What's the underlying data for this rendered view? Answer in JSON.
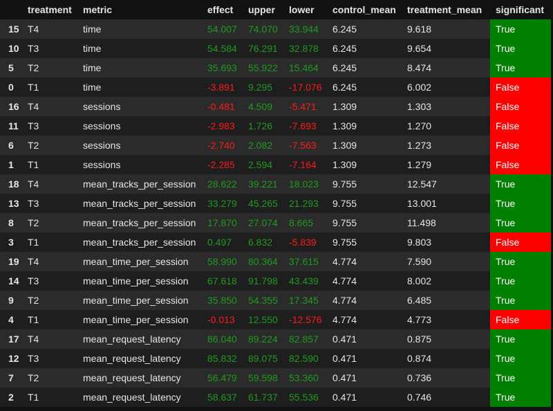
{
  "columns": [
    "",
    "treatment",
    "metric",
    "effect",
    "upper",
    "lower",
    "control_mean",
    "treatment_mean",
    "significant"
  ],
  "rows": [
    {
      "index": "15",
      "treatment": "T4",
      "metric": "time",
      "effect": "54.007",
      "upper": "74.070",
      "lower": "33.944",
      "control_mean": "6.245",
      "treatment_mean": "9.618",
      "significant": "True"
    },
    {
      "index": "10",
      "treatment": "T3",
      "metric": "time",
      "effect": "54.584",
      "upper": "76.291",
      "lower": "32.878",
      "control_mean": "6.245",
      "treatment_mean": "9.654",
      "significant": "True"
    },
    {
      "index": "5",
      "treatment": "T2",
      "metric": "time",
      "effect": "35.693",
      "upper": "55.922",
      "lower": "15.464",
      "control_mean": "6.245",
      "treatment_mean": "8.474",
      "significant": "True"
    },
    {
      "index": "0",
      "treatment": "T1",
      "metric": "time",
      "effect": "-3.891",
      "upper": "9.295",
      "lower": "-17.076",
      "control_mean": "6.245",
      "treatment_mean": "6.002",
      "significant": "False"
    },
    {
      "index": "16",
      "treatment": "T4",
      "metric": "sessions",
      "effect": "-0.481",
      "upper": "4.509",
      "lower": "-5.471",
      "control_mean": "1.309",
      "treatment_mean": "1.303",
      "significant": "False"
    },
    {
      "index": "11",
      "treatment": "T3",
      "metric": "sessions",
      "effect": "-2.983",
      "upper": "1.726",
      "lower": "-7.693",
      "control_mean": "1.309",
      "treatment_mean": "1.270",
      "significant": "False"
    },
    {
      "index": "6",
      "treatment": "T2",
      "metric": "sessions",
      "effect": "-2.740",
      "upper": "2.082",
      "lower": "-7.563",
      "control_mean": "1.309",
      "treatment_mean": "1.273",
      "significant": "False"
    },
    {
      "index": "1",
      "treatment": "T1",
      "metric": "sessions",
      "effect": "-2.285",
      "upper": "2.594",
      "lower": "-7.164",
      "control_mean": "1.309",
      "treatment_mean": "1.279",
      "significant": "False"
    },
    {
      "index": "18",
      "treatment": "T4",
      "metric": "mean_tracks_per_session",
      "effect": "28.622",
      "upper": "39.221",
      "lower": "18.023",
      "control_mean": "9.755",
      "treatment_mean": "12.547",
      "significant": "True"
    },
    {
      "index": "13",
      "treatment": "T3",
      "metric": "mean_tracks_per_session",
      "effect": "33.279",
      "upper": "45.265",
      "lower": "21.293",
      "control_mean": "9.755",
      "treatment_mean": "13.001",
      "significant": "True"
    },
    {
      "index": "8",
      "treatment": "T2",
      "metric": "mean_tracks_per_session",
      "effect": "17.870",
      "upper": "27.074",
      "lower": "8.665",
      "control_mean": "9.755",
      "treatment_mean": "11.498",
      "significant": "True"
    },
    {
      "index": "3",
      "treatment": "T1",
      "metric": "mean_tracks_per_session",
      "effect": "0.497",
      "upper": "6.832",
      "lower": "-5.839",
      "control_mean": "9.755",
      "treatment_mean": "9.803",
      "significant": "False"
    },
    {
      "index": "19",
      "treatment": "T4",
      "metric": "mean_time_per_session",
      "effect": "58.990",
      "upper": "80.364",
      "lower": "37.615",
      "control_mean": "4.774",
      "treatment_mean": "7.590",
      "significant": "True"
    },
    {
      "index": "14",
      "treatment": "T3",
      "metric": "mean_time_per_session",
      "effect": "67.618",
      "upper": "91.798",
      "lower": "43.439",
      "control_mean": "4.774",
      "treatment_mean": "8.002",
      "significant": "True"
    },
    {
      "index": "9",
      "treatment": "T2",
      "metric": "mean_time_per_session",
      "effect": "35.850",
      "upper": "54.355",
      "lower": "17.345",
      "control_mean": "4.774",
      "treatment_mean": "6.485",
      "significant": "True"
    },
    {
      "index": "4",
      "treatment": "T1",
      "metric": "mean_time_per_session",
      "effect": "-0.013",
      "upper": "12.550",
      "lower": "-12.576",
      "control_mean": "4.774",
      "treatment_mean": "4.773",
      "significant": "False"
    },
    {
      "index": "17",
      "treatment": "T4",
      "metric": "mean_request_latency",
      "effect": "86.040",
      "upper": "89.224",
      "lower": "82.857",
      "control_mean": "0.471",
      "treatment_mean": "0.875",
      "significant": "True"
    },
    {
      "index": "12",
      "treatment": "T3",
      "metric": "mean_request_latency",
      "effect": "85.832",
      "upper": "89.075",
      "lower": "82.590",
      "control_mean": "0.471",
      "treatment_mean": "0.874",
      "significant": "True"
    },
    {
      "index": "7",
      "treatment": "T2",
      "metric": "mean_request_latency",
      "effect": "56.479",
      "upper": "59.598",
      "lower": "53.360",
      "control_mean": "0.471",
      "treatment_mean": "0.736",
      "significant": "True"
    },
    {
      "index": "2",
      "treatment": "T1",
      "metric": "mean_request_latency",
      "effect": "58.637",
      "upper": "61.737",
      "lower": "55.536",
      "control_mean": "0.471",
      "treatment_mean": "0.746",
      "significant": "True"
    }
  ],
  "colors": {
    "positive_text": "#1f9a1f",
    "negative_text": "#ff1a1a",
    "significant_true_bg": "#008000",
    "significant_false_bg": "#ff0000"
  }
}
